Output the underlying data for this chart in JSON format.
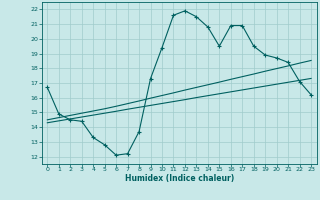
{
  "xlabel": "Humidex (Indice chaleur)",
  "xlim": [
    -0.5,
    23.5
  ],
  "ylim": [
    11.5,
    22.5
  ],
  "xticks": [
    0,
    1,
    2,
    3,
    4,
    5,
    6,
    7,
    8,
    9,
    10,
    11,
    12,
    13,
    14,
    15,
    16,
    17,
    18,
    19,
    20,
    21,
    22,
    23
  ],
  "yticks": [
    12,
    13,
    14,
    15,
    16,
    17,
    18,
    19,
    20,
    21,
    22
  ],
  "bg_color": "#c8e8e8",
  "grid_color": "#a0cccc",
  "line_color": "#006060",
  "line1_x": [
    0,
    1,
    2,
    3,
    4,
    5,
    6,
    7,
    8,
    9,
    10,
    11,
    12,
    13,
    14,
    15,
    16,
    17,
    18,
    19,
    20,
    21,
    22,
    23
  ],
  "line1_y": [
    16.7,
    14.9,
    14.5,
    14.4,
    13.3,
    12.8,
    12.1,
    12.2,
    13.7,
    17.3,
    19.4,
    21.6,
    21.9,
    21.5,
    20.8,
    19.5,
    20.9,
    20.9,
    19.5,
    18.9,
    18.7,
    18.4,
    17.1,
    16.2
  ],
  "line2_x": [
    0,
    1,
    2,
    3,
    4,
    5,
    6,
    7,
    8,
    9,
    10,
    11,
    12,
    13,
    14,
    15,
    16,
    17,
    18,
    19,
    20,
    21,
    22,
    23
  ],
  "line2_y": [
    14.5,
    14.65,
    14.8,
    14.95,
    15.1,
    15.25,
    15.42,
    15.6,
    15.78,
    15.97,
    16.15,
    16.33,
    16.52,
    16.7,
    16.88,
    17.06,
    17.25,
    17.43,
    17.61,
    17.8,
    17.98,
    18.16,
    18.35,
    18.53
  ],
  "line3_x": [
    0,
    1,
    2,
    3,
    4,
    5,
    6,
    7,
    8,
    9,
    10,
    11,
    12,
    13,
    14,
    15,
    16,
    17,
    18,
    19,
    20,
    21,
    22,
    23
  ],
  "line3_y": [
    14.3,
    14.43,
    14.56,
    14.69,
    14.82,
    14.95,
    15.08,
    15.22,
    15.35,
    15.48,
    15.61,
    15.74,
    15.87,
    16.01,
    16.14,
    16.27,
    16.4,
    16.53,
    16.66,
    16.79,
    16.92,
    17.05,
    17.18,
    17.31
  ]
}
